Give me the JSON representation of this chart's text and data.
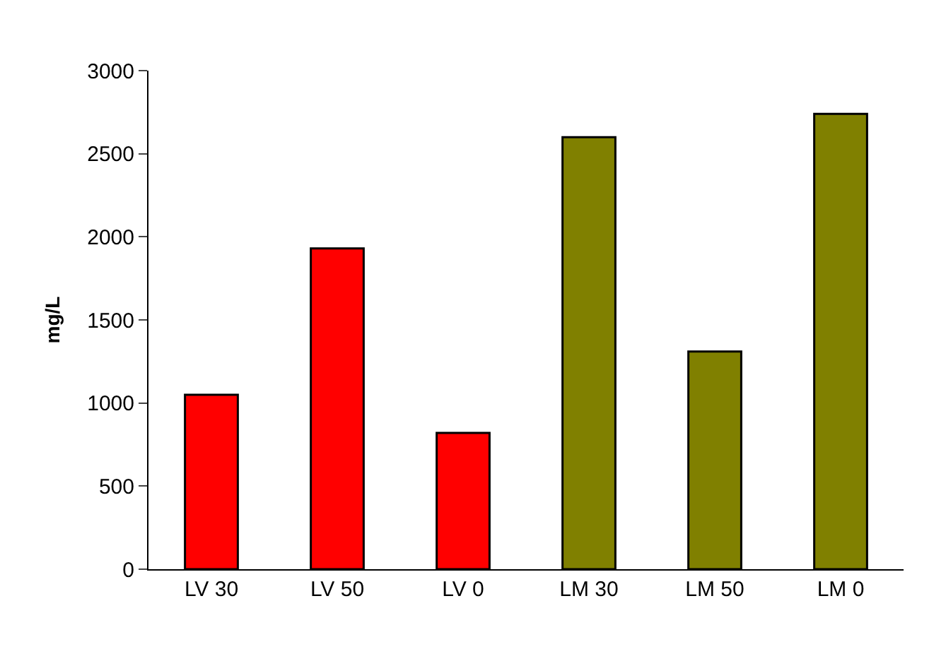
{
  "chart_data": {
    "type": "bar",
    "ylabel": "mg/L",
    "categories": [
      "LV 30",
      "LV 50",
      "LV 0",
      "LM 30",
      "LM 50",
      "LM 0"
    ],
    "values": [
      1050,
      1930,
      820,
      2600,
      1310,
      2740
    ],
    "colors": [
      "#ff0000",
      "#ff0000",
      "#ff0000",
      "#808000",
      "#808000",
      "#808000"
    ],
    "ylim": [
      0,
      3000
    ],
    "yticks": [
      0,
      500,
      1000,
      1500,
      2000,
      2500,
      3000
    ]
  }
}
